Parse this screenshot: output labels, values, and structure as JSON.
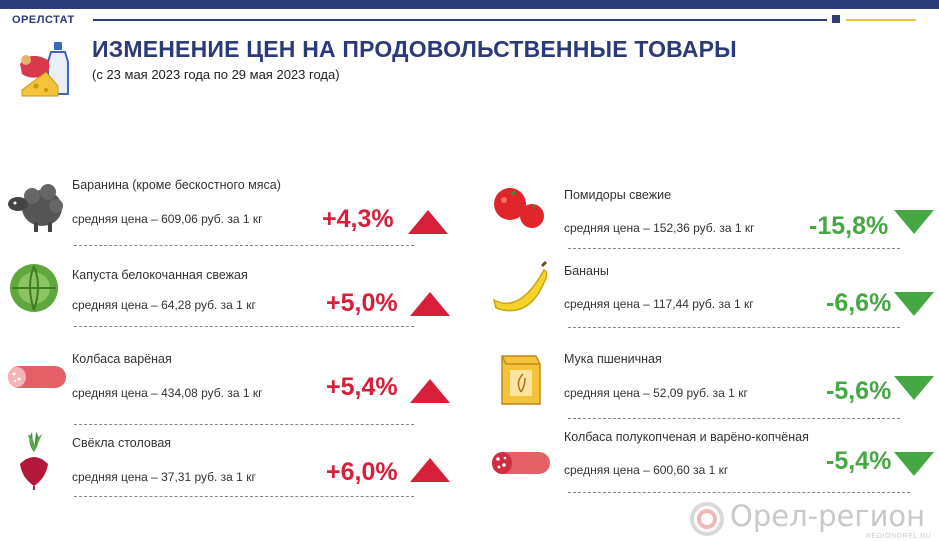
{
  "header": {
    "brand": "ОРЕЛСТАТ",
    "title": "ИЗМЕНЕНИЕ ЦЕН НА ПРОДОВОЛЬСТВЕННЫЕ ТОВАРЫ",
    "subtitle": "(с 23 мая 2023 года по 29 мая 2023 года)",
    "icon": "groceries-icon"
  },
  "colors": {
    "brand": "#2e3d7c",
    "accent": "#f1c232",
    "increase": "#d71f3a",
    "decrease": "#45a843"
  },
  "left_items": [
    {
      "name": "Баранина (кроме бескостного мяса)",
      "price": "средняя цена – 609,06 руб. за 1 кг",
      "change": "+4,3%",
      "direction": "up",
      "icon": "sheep-icon"
    },
    {
      "name": "Капуста белокочанная свежая",
      "price": "средняя цена – 64,28 руб. за 1 кг",
      "change": "+5,0%",
      "direction": "up",
      "icon": "cabbage-icon"
    },
    {
      "name": "Колбаса варёная",
      "price": "средняя цена – 434,08 руб. за 1 кг",
      "change": "+5,4%",
      "direction": "up",
      "icon": "boiled-sausage-icon"
    },
    {
      "name": "Свёкла столовая",
      "price": "средняя цена – 37,31 руб. за 1 кг",
      "change": "+6,0%",
      "direction": "up",
      "icon": "beet-icon"
    }
  ],
  "right_items": [
    {
      "name": "Помидоры свежие",
      "price": "средняя цена – 152,36 руб. за 1 кг",
      "change": "-15,8%",
      "direction": "down",
      "icon": "tomato-icon"
    },
    {
      "name": "Бананы",
      "price": "средняя цена –  117,44 руб. за  1 кг",
      "change": "-6,6%",
      "direction": "down",
      "icon": "banana-icon"
    },
    {
      "name": "Мука пшеничная",
      "price": "средняя цена – 52,09 руб. за 1 кг",
      "change": "-5,6%",
      "direction": "down",
      "icon": "flour-icon"
    },
    {
      "name": "Колбаса полукопченая и варёно-копчёная",
      "price": "средняя цена – 600,60 за 1 кг",
      "change": "-5,4%",
      "direction": "down",
      "icon": "smoked-sausage-icon"
    }
  ],
  "watermark": {
    "text": "Орел-регион",
    "sub": "REGIONOREL.RU",
    "icon": "orel-region-logo-icon"
  }
}
